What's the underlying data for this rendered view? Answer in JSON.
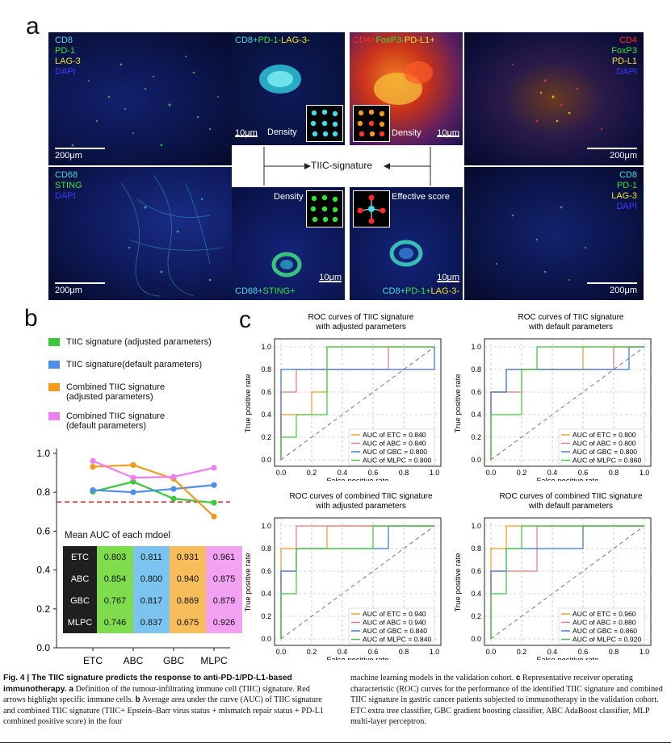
{
  "panel_a": {
    "letter": "a",
    "tl": {
      "labels": [
        "CD8",
        "PD-1",
        "LAG-3",
        "DAPI"
      ],
      "scale": "200μm"
    },
    "bl": {
      "labels": [
        "CD68",
        "STING",
        "DAPI"
      ],
      "scale": "200μm"
    },
    "tr": {
      "labels": [
        "CD4",
        "FoxP3",
        "PD-L1",
        "DAPI"
      ],
      "scale": "200μm"
    },
    "br": {
      "labels": [
        "CD8",
        "PD-1",
        "LAG-3",
        "DAPI"
      ],
      "scale": "200μm"
    },
    "zoom_tl": {
      "parts": [
        "CD8+",
        "PD-1-",
        "LAG-3-"
      ],
      "scale": "10μm",
      "tag": "Density"
    },
    "zoom_tr": {
      "parts": [
        "CD4+",
        "FoxP3-",
        "PD-L1+"
      ],
      "scale": "10μm",
      "tag": "Density"
    },
    "zoom_bl": {
      "parts": [
        "CD68+",
        "STING+"
      ],
      "scale": "10μm",
      "tag": "Density"
    },
    "zoom_br": {
      "parts": [
        "CD8+",
        "PD-1+",
        "LAG-3-"
      ],
      "scale": "10μm",
      "tag": "Effective score"
    },
    "center": "TIIC-signature",
    "colors": {
      "cyan": "#46d9e8",
      "green": "#35e23c",
      "yellow": "#f3e02a",
      "blue": "#3c3cff",
      "red": "#ff2a2a"
    }
  },
  "panel_b": {
    "letter": "b",
    "legend": [
      {
        "label": "TIIC signature (adjusted parameters)",
        "color": "#3ec63e"
      },
      {
        "label": "TIIC signature(default parameters)",
        "color": "#4d8fe8"
      },
      {
        "label": "Combined TIIC signature (adjusted parameters)",
        "color": "#f39a1d"
      },
      {
        "label": "Combined TIIC signature (default parameters)",
        "color": "#ee7ff0"
      }
    ],
    "chart_data": {
      "type": "line",
      "categories": [
        "ETC",
        "ABC",
        "GBC",
        "MLPC"
      ],
      "series": [
        {
          "name": "TIIC signature (adjusted parameters)",
          "color": "#3ec63e",
          "values": [
            0.803,
            0.854,
            0.767,
            0.746
          ]
        },
        {
          "name": "TIIC signature(default parameters)",
          "color": "#4d8fe8",
          "values": [
            0.811,
            0.8,
            0.817,
            0.837
          ]
        },
        {
          "name": "Combined TIIC signature (adjusted parameters)",
          "color": "#f39a1d",
          "values": [
            0.931,
            0.94,
            0.869,
            0.675
          ]
        },
        {
          "name": "Combined TIIC signature (default parameters)",
          "color": "#ee7ff0",
          "values": [
            0.961,
            0.875,
            0.879,
            0.926
          ]
        }
      ],
      "ylim": [
        0.0,
        1.0
      ],
      "yticks": [
        "0.0",
        "0.2",
        "0.4",
        "0.6",
        "0.8",
        "1.0"
      ],
      "threshold": 0.75,
      "table": {
        "title": "Mean AUC of each mdoel",
        "rows": [
          {
            "model": "ETC",
            "values": [
              "0.803",
              "0.811",
              "0.931",
              "0.961"
            ]
          },
          {
            "model": "ABC",
            "values": [
              "0.854",
              "0.800",
              "0.940",
              "0.875"
            ]
          },
          {
            "model": "GBC",
            "values": [
              "0.767",
              "0.817",
              "0.869",
              "0.879"
            ]
          },
          {
            "model": "MLPC",
            "values": [
              "0.746",
              "0.837",
              "0.675",
              "0.926"
            ]
          }
        ]
      }
    }
  },
  "panel_c": {
    "letter": "c",
    "axis": {
      "xlabel": "False positive rate",
      "ylabel": "True positive rate",
      "ticks": [
        "0.0",
        "0.2",
        "0.4",
        "0.6",
        "0.8",
        "1.0"
      ]
    },
    "series_colors": {
      "ETC": "#f39a1d",
      "ABC": "#e8787a",
      "GBC": "#3a6fd8",
      "MLPC": "#3ec63e"
    },
    "chart_data": [
      {
        "type": "line",
        "title": [
          "ROC curves of TIIC signature",
          "with adjusted parameters"
        ],
        "xlabel": "False positive rate",
        "ylabel": "True positive rate",
        "xlim": [
          0,
          1
        ],
        "ylim": [
          0,
          1
        ],
        "legend": [
          "AUC of ETC = 0.840",
          "AUC of ABC = 0.840",
          "AUC of GBC = 0.800",
          "AUC of MLPC = 0.800"
        ],
        "series": [
          {
            "name": "ETC",
            "points": [
              [
                0,
                0
              ],
              [
                0,
                0.4
              ],
              [
                0.2,
                0.4
              ],
              [
                0.2,
                0.6
              ],
              [
                0.3,
                0.6
              ],
              [
                0.3,
                1
              ],
              [
                1,
                1
              ]
            ]
          },
          {
            "name": "ABC",
            "points": [
              [
                0,
                0
              ],
              [
                0,
                0.6
              ],
              [
                0.1,
                0.6
              ],
              [
                0.1,
                0.8
              ],
              [
                0.7,
                0.8
              ],
              [
                0.7,
                1
              ],
              [
                1,
                1
              ]
            ]
          },
          {
            "name": "GBC",
            "points": [
              [
                0,
                0
              ],
              [
                0,
                0.8
              ],
              [
                1,
                0.8
              ],
              [
                1,
                1
              ]
            ]
          },
          {
            "name": "MLPC",
            "points": [
              [
                0,
                0
              ],
              [
                0,
                0.2
              ],
              [
                0.1,
                0.2
              ],
              [
                0.1,
                0.4
              ],
              [
                0.3,
                0.4
              ],
              [
                0.3,
                1
              ],
              [
                1,
                1
              ]
            ]
          }
        ]
      },
      {
        "type": "line",
        "title": [
          "ROC curves of TIIC signature",
          "with default parameters"
        ],
        "xlabel": "False positive rate",
        "ylabel": "True positive rate",
        "xlim": [
          0,
          1
        ],
        "ylim": [
          0,
          1
        ],
        "legend": [
          "AUC of ETC = 0.800",
          "AUC of ABC = 0.800",
          "AUC of GBC = 0.800",
          "AUC of MLPC = 0.860"
        ],
        "series": [
          {
            "name": "ETC",
            "points": [
              [
                0,
                0
              ],
              [
                0,
                0.6
              ],
              [
                0.1,
                0.6
              ],
              [
                0.1,
                0.8
              ],
              [
                0.6,
                0.8
              ],
              [
                0.6,
                1
              ],
              [
                1,
                1
              ]
            ]
          },
          {
            "name": "ABC",
            "points": [
              [
                0,
                0
              ],
              [
                0,
                0.6
              ],
              [
                0.2,
                0.6
              ],
              [
                0.2,
                0.8
              ],
              [
                0.8,
                0.8
              ],
              [
                0.8,
                1
              ],
              [
                1,
                1
              ]
            ]
          },
          {
            "name": "GBC",
            "points": [
              [
                0,
                0
              ],
              [
                0,
                0.6
              ],
              [
                0.1,
                0.6
              ],
              [
                0.1,
                0.8
              ],
              [
                0.9,
                0.8
              ],
              [
                0.9,
                1
              ],
              [
                1,
                1
              ]
            ]
          },
          {
            "name": "MLPC",
            "points": [
              [
                0,
                0
              ],
              [
                0,
                0.4
              ],
              [
                0.2,
                0.4
              ],
              [
                0.2,
                0.8
              ],
              [
                0.3,
                0.8
              ],
              [
                0.3,
                1
              ],
              [
                1,
                1
              ]
            ]
          }
        ]
      },
      {
        "type": "line",
        "title": [
          "ROC curves of combined TIIC signature",
          "with adjusted parameters"
        ],
        "xlabel": "False positive rate",
        "ylabel": "True positive rate",
        "xlim": [
          0,
          1
        ],
        "ylim": [
          0,
          1
        ],
        "legend": [
          "AUC of ETC = 0.940",
          "AUC of ABC = 0.940",
          "AUC of GBC = 0.840",
          "AUC of MLPC = 0.840"
        ],
        "series": [
          {
            "name": "ETC",
            "points": [
              [
                0,
                0
              ],
              [
                0,
                0.8
              ],
              [
                0.2,
                0.8
              ],
              [
                0.2,
                0.8
              ],
              [
                0.3,
                0.8
              ],
              [
                0.3,
                1
              ],
              [
                1,
                1
              ]
            ]
          },
          {
            "name": "ABC",
            "points": [
              [
                0,
                0
              ],
              [
                0,
                0.6
              ],
              [
                0.1,
                0.6
              ],
              [
                0.1,
                1
              ],
              [
                1,
                1
              ]
            ]
          },
          {
            "name": "GBC",
            "points": [
              [
                0,
                0
              ],
              [
                0,
                0.6
              ],
              [
                0.1,
                0.6
              ],
              [
                0.1,
                0.8
              ],
              [
                0.7,
                0.8
              ],
              [
                0.7,
                1
              ],
              [
                1,
                1
              ]
            ]
          },
          {
            "name": "MLPC",
            "points": [
              [
                0,
                0
              ],
              [
                0,
                0.4
              ],
              [
                0.1,
                0.4
              ],
              [
                0.1,
                0.8
              ],
              [
                0.6,
                0.8
              ],
              [
                0.6,
                1
              ],
              [
                1,
                1
              ]
            ]
          }
        ]
      },
      {
        "type": "line",
        "title": [
          "ROC curves of combined TIIC signature",
          "with default parameters"
        ],
        "xlabel": "False positive rate",
        "ylabel": "True positive rate",
        "xlim": [
          0,
          1
        ],
        "ylim": [
          0,
          1
        ],
        "legend": [
          "AUC of ETC = 0.960",
          "AUC of ABC = 0.880",
          "AUC of GBC = 0.860",
          "AUC of MLPC = 0.920"
        ],
        "series": [
          {
            "name": "ETC",
            "points": [
              [
                0,
                0
              ],
              [
                0,
                0.8
              ],
              [
                0.1,
                0.8
              ],
              [
                0.1,
                1
              ],
              [
                1,
                1
              ]
            ]
          },
          {
            "name": "ABC",
            "points": [
              [
                0,
                0
              ],
              [
                0,
                0.6
              ],
              [
                0.2,
                0.6
              ],
              [
                0.2,
                0.6
              ],
              [
                0.3,
                0.6
              ],
              [
                0.3,
                1
              ],
              [
                1,
                1
              ]
            ]
          },
          {
            "name": "GBC",
            "points": [
              [
                0,
                0
              ],
              [
                0,
                0.6
              ],
              [
                0.1,
                0.6
              ],
              [
                0.1,
                0.8
              ],
              [
                0.6,
                0.8
              ],
              [
                0.6,
                1
              ],
              [
                1,
                1
              ]
            ]
          },
          {
            "name": "MLPC",
            "points": [
              [
                0,
                0
              ],
              [
                0,
                0.4
              ],
              [
                0.1,
                0.4
              ],
              [
                0.1,
                0.8
              ],
              [
                0.2,
                0.8
              ],
              [
                0.2,
                1
              ],
              [
                1,
                1
              ]
            ]
          }
        ]
      }
    ]
  },
  "caption": {
    "left": {
      "bold": "Fig. 4 | The TIIC signature predicts the response to anti-PD-1/PD-L1-based immunotherapy. a",
      "text1": " Definition of the tumour-infiltrating immune cell (TIIC) signature. Red arrows highlight specific immune cells. ",
      "bold2": "b",
      "text2": " Average area under the curve (AUC) of TIIC signature and combined TIIC signature (TIIC+ Epstein–Barr virus status + mismatch repair status + PD-L1 combined positive score) in the four"
    },
    "right": {
      "text1": "machine learning models in the validation cohort. ",
      "bold": "c",
      "text2": " Representative receiver operating characteristic (ROC) curves for the performance of the identified TIIC signature and combined TIIC signature in gastric cancer patients subjected to immunotherapy in the validation cohort. ETC extra tree classifier, GBC gradient boosting classifier, ABC AdaBoost classifier, MLP multi-layer perceptron."
    }
  }
}
